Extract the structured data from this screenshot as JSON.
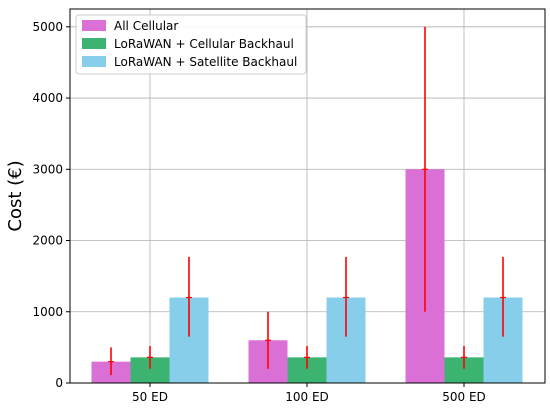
{
  "chart_data": {
    "type": "bar",
    "title": "",
    "xlabel": "",
    "ylabel": "Cost (€)",
    "categories": [
      "50 ED",
      "100 ED",
      "500 ED"
    ],
    "ylim": [
      0,
      5250
    ],
    "yticks": [
      0,
      1000,
      2000,
      3000,
      4000,
      5000
    ],
    "grid": true,
    "legend_position": "top-left",
    "series": [
      {
        "name": "All Cellular",
        "color": "#da70d6",
        "values": [
          300,
          600,
          3000
        ],
        "err_low": [
          110,
          200,
          1000
        ],
        "err_high": [
          500,
          1000,
          5000
        ]
      },
      {
        "name": "LoRaWAN + Cellular Backhaul",
        "color": "#3cb371",
        "values": [
          360,
          360,
          360
        ],
        "err_low": [
          200,
          200,
          200
        ],
        "err_high": [
          520,
          520,
          520
        ]
      },
      {
        "name": "LoRaWAN + Satellite Backhaul",
        "color": "#87ceeb",
        "values": [
          1200,
          1200,
          1200
        ],
        "err_low": [
          650,
          650,
          650
        ],
        "err_high": [
          1770,
          1770,
          1770
        ]
      }
    ],
    "error_bar_color": "#ff0000",
    "axis_color": "#000000",
    "grid_color": "#b0b0b0"
  }
}
